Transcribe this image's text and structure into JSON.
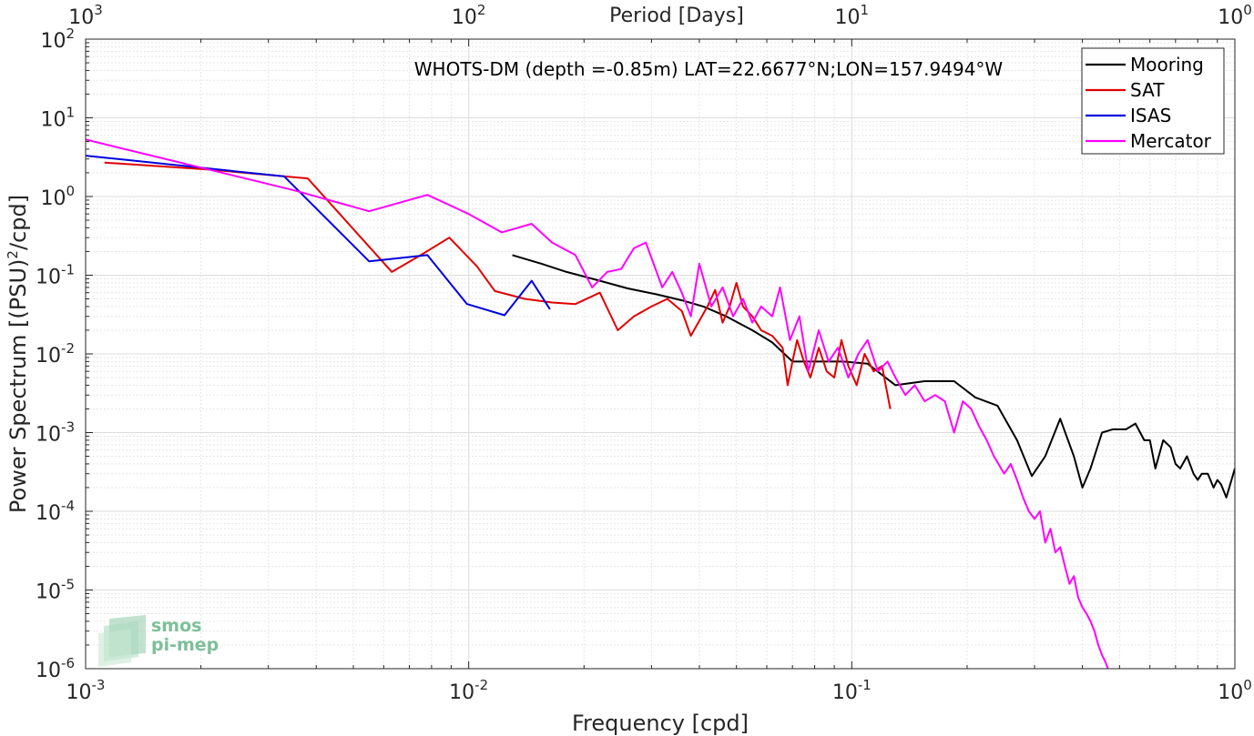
{
  "chart_data": {
    "type": "line",
    "xscale": "log",
    "yscale": "log",
    "xlabel": "Frequency [cpd]",
    "ylabel": "Power Spectrum [(PSU)²/cpd]",
    "ylabel_parts": {
      "main": "Power Spectrum [(PSU)",
      "sup": "2",
      "tail": "/cpd]"
    },
    "top_xlabel": "Period [Days]",
    "annotation": "WHOTS-DM (depth =-0.85m) LAT=22.6677°N;LON=157.9494°W",
    "xlim": [
      0.001,
      1
    ],
    "ylim": [
      1e-06,
      100
    ],
    "grid": true,
    "legend_position": "top-right",
    "x_ticks": [
      {
        "base": "10",
        "exp": "-3"
      },
      {
        "base": "10",
        "exp": "-2"
      },
      {
        "base": "10",
        "exp": "-1"
      },
      {
        "base": "10",
        "exp": "0"
      }
    ],
    "top_ticks": [
      {
        "base": "10",
        "exp": "3"
      },
      {
        "base": "10",
        "exp": "2"
      },
      {
        "base": "10",
        "exp": "1"
      },
      {
        "base": "10",
        "exp": "0"
      }
    ],
    "y_ticks": [
      {
        "base": "10",
        "exp": "-6"
      },
      {
        "base": "10",
        "exp": "-5"
      },
      {
        "base": "10",
        "exp": "-4"
      },
      {
        "base": "10",
        "exp": "-3"
      },
      {
        "base": "10",
        "exp": "-2"
      },
      {
        "base": "10",
        "exp": "-1"
      },
      {
        "base": "10",
        "exp": "0"
      },
      {
        "base": "10",
        "exp": "1"
      },
      {
        "base": "10",
        "exp": "2"
      }
    ],
    "series": [
      {
        "name": "Mooring",
        "color": "#000000",
        "x": [
          0.013,
          0.0155,
          0.018,
          0.022,
          0.026,
          0.031,
          0.036,
          0.041,
          0.047,
          0.055,
          0.062,
          0.07,
          0.08,
          0.095,
          0.11,
          0.13,
          0.155,
          0.185,
          0.21,
          0.24,
          0.27,
          0.295,
          0.32,
          0.35,
          0.38,
          0.4,
          0.42,
          0.45,
          0.48,
          0.5,
          0.52,
          0.55,
          0.58,
          0.6,
          0.62,
          0.65,
          0.68,
          0.7,
          0.72,
          0.75,
          0.78,
          0.8,
          0.82,
          0.85,
          0.88,
          0.9,
          0.92,
          0.95,
          0.98,
          1.0
        ],
        "y": [
          0.18,
          0.14,
          0.11,
          0.085,
          0.068,
          0.057,
          0.048,
          0.04,
          0.03,
          0.02,
          0.014,
          0.008,
          0.008,
          0.008,
          0.0075,
          0.004,
          0.0045,
          0.0045,
          0.0028,
          0.0022,
          0.0008,
          0.00028,
          0.0005,
          0.0015,
          0.0005,
          0.0002,
          0.00035,
          0.001,
          0.0011,
          0.0011,
          0.0011,
          0.0013,
          0.0008,
          0.0008,
          0.00035,
          0.0008,
          0.00065,
          0.0004,
          0.00035,
          0.0005,
          0.0003,
          0.00025,
          0.0003,
          0.0003,
          0.0002,
          0.00025,
          0.00022,
          0.00015,
          0.00025,
          0.00035
        ]
      },
      {
        "name": "SAT",
        "color": "#e00000",
        "x": [
          0.00112,
          0.0021,
          0.0038,
          0.0063,
          0.0075,
          0.0089,
          0.0105,
          0.0117,
          0.014,
          0.0165,
          0.019,
          0.022,
          0.0245,
          0.027,
          0.03,
          0.033,
          0.036,
          0.038,
          0.042,
          0.044,
          0.046,
          0.048,
          0.05,
          0.052,
          0.055,
          0.058,
          0.062,
          0.066,
          0.068,
          0.07,
          0.072,
          0.075,
          0.078,
          0.082,
          0.086,
          0.09,
          0.094,
          0.098,
          0.103,
          0.108,
          0.114,
          0.12,
          0.126
        ],
        "y": [
          2.7,
          2.2,
          1.7,
          0.11,
          0.18,
          0.3,
          0.13,
          0.063,
          0.05,
          0.045,
          0.043,
          0.06,
          0.02,
          0.03,
          0.04,
          0.05,
          0.035,
          0.017,
          0.04,
          0.065,
          0.025,
          0.04,
          0.08,
          0.04,
          0.03,
          0.02,
          0.017,
          0.012,
          0.004,
          0.008,
          0.015,
          0.008,
          0.005,
          0.012,
          0.006,
          0.005,
          0.015,
          0.007,
          0.004,
          0.01,
          0.006,
          0.007,
          0.002
        ]
      },
      {
        "name": "ISAS",
        "color": "#0000dd",
        "x": [
          0.001,
          0.0033,
          0.0055,
          0.0078,
          0.0099,
          0.0124,
          0.0146,
          0.0163
        ],
        "y": [
          3.3,
          1.8,
          0.15,
          0.18,
          0.043,
          0.031,
          0.085,
          0.037
        ]
      },
      {
        "name": "Mercator",
        "color": "#ff00ff",
        "x": [
          0.001,
          0.0035,
          0.0055,
          0.0078,
          0.01,
          0.0122,
          0.0146,
          0.0165,
          0.019,
          0.021,
          0.023,
          0.025,
          0.027,
          0.029,
          0.032,
          0.034,
          0.036,
          0.038,
          0.04,
          0.043,
          0.046,
          0.049,
          0.052,
          0.055,
          0.058,
          0.062,
          0.065,
          0.069,
          0.073,
          0.077,
          0.082,
          0.087,
          0.092,
          0.098,
          0.104,
          0.11,
          0.117,
          0.124,
          0.13,
          0.138,
          0.146,
          0.155,
          0.165,
          0.175,
          0.185,
          0.195,
          0.205,
          0.215,
          0.225,
          0.235,
          0.25,
          0.26,
          0.27,
          0.28,
          0.29,
          0.3,
          0.31,
          0.32,
          0.33,
          0.34,
          0.35,
          0.36,
          0.37,
          0.38,
          0.39,
          0.4,
          0.41,
          0.42,
          0.43,
          0.44,
          0.45,
          0.46,
          0.47,
          0.48
        ],
        "y": [
          5.3,
          1.2,
          0.65,
          1.05,
          0.6,
          0.35,
          0.45,
          0.26,
          0.18,
          0.07,
          0.11,
          0.12,
          0.22,
          0.26,
          0.07,
          0.11,
          0.06,
          0.03,
          0.14,
          0.04,
          0.07,
          0.03,
          0.05,
          0.025,
          0.04,
          0.03,
          0.07,
          0.015,
          0.03,
          0.006,
          0.02,
          0.008,
          0.012,
          0.005,
          0.01,
          0.015,
          0.006,
          0.008,
          0.005,
          0.003,
          0.004,
          0.0025,
          0.003,
          0.0025,
          0.001,
          0.0025,
          0.002,
          0.0012,
          0.0008,
          0.0005,
          0.0003,
          0.0004,
          0.00025,
          0.00015,
          0.0001,
          8e-05,
          0.0001,
          4e-05,
          6e-05,
          3e-05,
          3.5e-05,
          2e-05,
          1.2e-05,
          1.5e-05,
          8e-06,
          6e-06,
          5e-06,
          4e-06,
          3e-06,
          2e-06,
          1.5e-06,
          1.2e-06,
          9e-07,
          6e-07
        ]
      }
    ]
  }
}
